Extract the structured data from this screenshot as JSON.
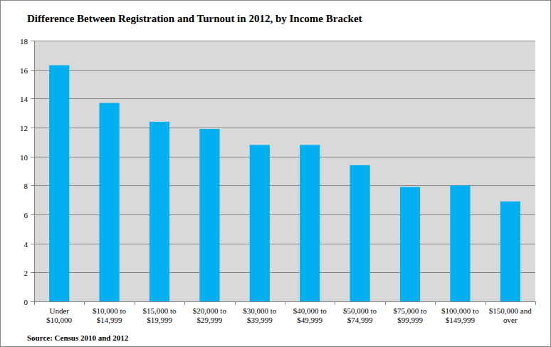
{
  "chart_data": {
    "type": "bar",
    "title": "Difference Between Registration and Turnout in 2012, by Income Bracket",
    "source": "Source: Census 2010 and 2012",
    "categories": [
      "Under $10,000",
      "$10,000 to $14,999",
      "$15,000 to $19,999",
      "$20,000 to $29,999",
      "$30,000 to $39,999",
      "$40,000 to $49,999",
      "$50,000 to $74,999",
      "$75,000 to $99,999",
      "$100,000 to $149,999",
      "$150,000 and over"
    ],
    "values": [
      16.3,
      13.7,
      12.4,
      11.9,
      10.8,
      10.8,
      9.4,
      7.9,
      8.0,
      6.9
    ],
    "color": "#00b0f0",
    "ylim": [
      0,
      18
    ],
    "yticks": [
      0,
      2,
      4,
      6,
      8,
      10,
      12,
      14,
      16,
      18
    ],
    "grid": true
  }
}
